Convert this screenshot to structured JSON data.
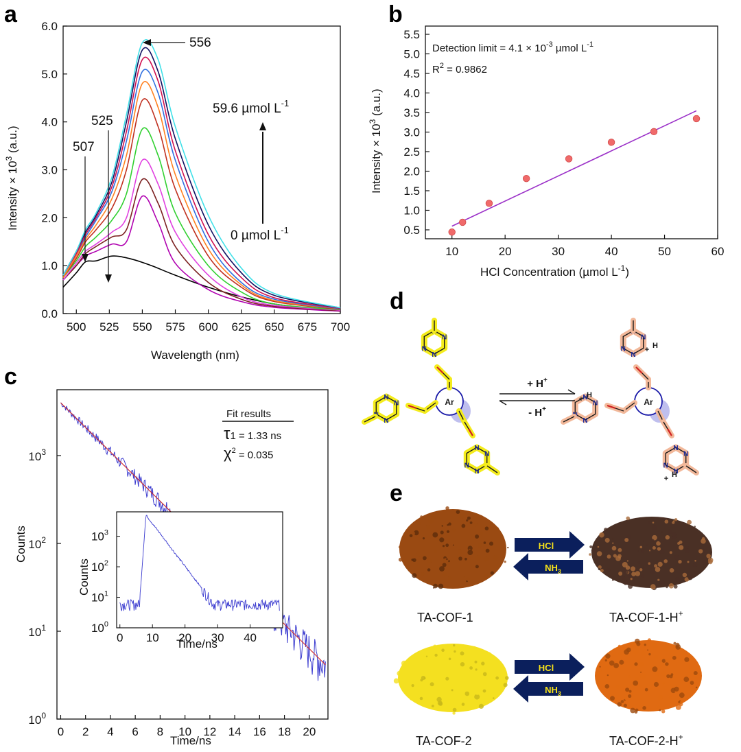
{
  "panels": {
    "a": "a",
    "b": "b",
    "c": "c",
    "d": "d",
    "e": "e"
  },
  "chart_data": [
    {
      "id": "a",
      "type": "line",
      "xlabel": "Wavelength (nm)",
      "ylabel_main": "Intensity × 10",
      "ylabel_sup": "3",
      "ylabel_tail": " (a.u.)",
      "xlim": [
        490,
        700
      ],
      "ylim": [
        0,
        6
      ],
      "xticks": [
        500,
        525,
        550,
        575,
        600,
        625,
        650,
        675,
        700
      ],
      "yticks": [
        "0.0",
        "1.0",
        "2.0",
        "3.0",
        "4.0",
        "5.0",
        "6.0"
      ],
      "annotations": {
        "peak_556": "556",
        "peak_525": "525",
        "peak_507": "507",
        "top_conc": "59.6 µmol L",
        "top_sup": "-1",
        "bottom_conc": "0 µmol L",
        "bottom_sup": "-1"
      },
      "series": [
        {
          "color": "#000000",
          "values": [
            [
              490,
              0.55
            ],
            [
              500,
              0.85
            ],
            [
              507,
              1.08
            ],
            [
              515,
              1.1
            ],
            [
              527,
              1.2
            ],
            [
              540,
              1.15
            ],
            [
              555,
              1.02
            ],
            [
              575,
              0.8
            ],
            [
              600,
              0.55
            ],
            [
              625,
              0.35
            ],
            [
              650,
              0.2
            ],
            [
              675,
              0.12
            ],
            [
              700,
              0.07
            ]
          ]
        },
        {
          "color": "#b000b0",
          "values": [
            [
              490,
              0.7
            ],
            [
              500,
              1.0
            ],
            [
              507,
              1.2
            ],
            [
              515,
              1.3
            ],
            [
              527,
              1.45
            ],
            [
              538,
              1.5
            ],
            [
              550,
              2.45
            ],
            [
              562,
              1.9
            ],
            [
              575,
              1.05
            ],
            [
              600,
              0.5
            ],
            [
              625,
              0.25
            ],
            [
              650,
              0.13
            ],
            [
              700,
              0.05
            ]
          ]
        },
        {
          "color": "#7b2020",
          "values": [
            [
              490,
              0.7
            ],
            [
              500,
              1.0
            ],
            [
              507,
              1.25
            ],
            [
              515,
              1.4
            ],
            [
              527,
              1.6
            ],
            [
              538,
              1.75
            ],
            [
              550,
              2.8
            ],
            [
              562,
              2.3
            ],
            [
              575,
              1.4
            ],
            [
              600,
              0.65
            ],
            [
              625,
              0.3
            ],
            [
              650,
              0.15
            ],
            [
              700,
              0.06
            ]
          ]
        },
        {
          "color": "#e040e0",
          "values": [
            [
              490,
              0.7
            ],
            [
              500,
              1.05
            ],
            [
              507,
              1.3
            ],
            [
              515,
              1.45
            ],
            [
              527,
              1.7
            ],
            [
              538,
              2.0
            ],
            [
              550,
              3.2
            ],
            [
              562,
              2.7
            ],
            [
              575,
              1.7
            ],
            [
              600,
              0.8
            ],
            [
              625,
              0.35
            ],
            [
              650,
              0.17
            ],
            [
              700,
              0.07
            ]
          ]
        },
        {
          "color": "#30d030",
          "values": [
            [
              490,
              0.75
            ],
            [
              500,
              1.1
            ],
            [
              507,
              1.4
            ],
            [
              515,
              1.6
            ],
            [
              527,
              1.95
            ],
            [
              538,
              2.5
            ],
            [
              550,
              3.85
            ],
            [
              562,
              3.3
            ],
            [
              575,
              2.1
            ],
            [
              600,
              1.0
            ],
            [
              625,
              0.45
            ],
            [
              650,
              0.2
            ],
            [
              700,
              0.08
            ]
          ]
        },
        {
          "color": "#c03020",
          "values": [
            [
              490,
              0.75
            ],
            [
              500,
              1.15
            ],
            [
              507,
              1.5
            ],
            [
              515,
              1.75
            ],
            [
              527,
              2.2
            ],
            [
              538,
              3.0
            ],
            [
              550,
              4.45
            ],
            [
              562,
              3.9
            ],
            [
              575,
              2.6
            ],
            [
              600,
              1.2
            ],
            [
              625,
              0.55
            ],
            [
              650,
              0.25
            ],
            [
              700,
              0.09
            ]
          ]
        },
        {
          "color": "#ff8020",
          "values": [
            [
              490,
              0.75
            ],
            [
              500,
              1.2
            ],
            [
              507,
              1.55
            ],
            [
              515,
              1.85
            ],
            [
              527,
              2.4
            ],
            [
              538,
              3.3
            ],
            [
              550,
              4.8
            ],
            [
              562,
              4.3
            ],
            [
              575,
              2.9
            ],
            [
              600,
              1.35
            ],
            [
              625,
              0.6
            ],
            [
              650,
              0.27
            ],
            [
              700,
              0.1
            ]
          ]
        },
        {
          "color": "#3070e0",
          "values": [
            [
              490,
              0.8
            ],
            [
              500,
              1.25
            ],
            [
              507,
              1.6
            ],
            [
              515,
              1.95
            ],
            [
              527,
              2.55
            ],
            [
              538,
              3.6
            ],
            [
              550,
              5.05
            ],
            [
              562,
              4.6
            ],
            [
              575,
              3.2
            ],
            [
              600,
              1.5
            ],
            [
              625,
              0.65
            ],
            [
              650,
              0.3
            ],
            [
              700,
              0.1
            ]
          ]
        },
        {
          "color": "#d01050",
          "values": [
            [
              490,
              0.8
            ],
            [
              500,
              1.25
            ],
            [
              507,
              1.65
            ],
            [
              515,
              2.0
            ],
            [
              527,
              2.65
            ],
            [
              538,
              3.8
            ],
            [
              550,
              5.3
            ],
            [
              562,
              4.85
            ],
            [
              575,
              3.4
            ],
            [
              600,
              1.65
            ],
            [
              625,
              0.75
            ],
            [
              650,
              0.33
            ],
            [
              700,
              0.11
            ]
          ]
        },
        {
          "color": "#101060",
          "values": [
            [
              490,
              0.8
            ],
            [
              500,
              1.3
            ],
            [
              507,
              1.7
            ],
            [
              515,
              2.05
            ],
            [
              527,
              2.75
            ],
            [
              538,
              4.0
            ],
            [
              550,
              5.5
            ],
            [
              562,
              5.05
            ],
            [
              575,
              3.65
            ],
            [
              600,
              1.85
            ],
            [
              625,
              0.85
            ],
            [
              650,
              0.38
            ],
            [
              700,
              0.12
            ]
          ]
        },
        {
          "color": "#40e0e8",
          "values": [
            [
              490,
              0.8
            ],
            [
              500,
              1.3
            ],
            [
              507,
              1.75
            ],
            [
              515,
              2.1
            ],
            [
              527,
              2.85
            ],
            [
              538,
              4.15
            ],
            [
              550,
              5.65
            ],
            [
              562,
              5.3
            ],
            [
              575,
              3.9
            ],
            [
              600,
              2.05
            ],
            [
              625,
              0.95
            ],
            [
              650,
              0.42
            ],
            [
              700,
              0.12
            ]
          ]
        }
      ]
    },
    {
      "id": "b",
      "type": "scatter",
      "xlabel_main": "HCl Concentration (µmol L",
      "xlabel_sup": "-1",
      "xlabel_tail": ")",
      "ylabel_main": "Intensity × 10",
      "ylabel_sup": "3",
      "ylabel_tail": " (a.u.)",
      "xlim": [
        5,
        60
      ],
      "ylim": [
        0.3,
        5.7
      ],
      "xticks": [
        10,
        20,
        30,
        40,
        50,
        60
      ],
      "yticks": [
        "0.5",
        "1.0",
        "1.5",
        "2.0",
        "2.5",
        "3.0",
        "3.5",
        "4.0",
        "4.5",
        "5.0",
        "5.5"
      ],
      "det_main": "Detection limit = 4.1 × 10",
      "det_sup": "-3",
      "det_tail": " µmol L",
      "det_sup2": "-1",
      "r2_main": "R",
      "r2_sup": "2",
      "r2_tail": " = 0.9862",
      "points": [
        [
          10,
          0.47
        ],
        [
          12,
          0.72
        ],
        [
          17,
          1.2
        ],
        [
          24,
          1.83
        ],
        [
          32,
          2.33
        ],
        [
          40,
          2.75
        ],
        [
          48,
          3.02
        ],
        [
          56,
          3.35
        ]
      ],
      "fit": [
        [
          10,
          0.62
        ],
        [
          56,
          3.55
        ]
      ]
    },
    {
      "id": "c",
      "type": "line",
      "xlabel": "Time/ns",
      "ylabel": "Counts",
      "xlim": [
        -0.3,
        21.5
      ],
      "ylog_range": [
        0,
        3.75
      ],
      "xticks": [
        0,
        2,
        4,
        6,
        8,
        10,
        12,
        14,
        16,
        18,
        20
      ],
      "ytick_base": "10",
      "ytick_exps": [
        "0",
        "1",
        "2",
        "3"
      ],
      "fit_title": "Fit results",
      "tau_symbol": "τ",
      "tau_text": "1 = 1.33 ns",
      "chi_symbol": "χ",
      "chi_sup": "2",
      "chi_text": " = 0.035",
      "decay": {
        "start": 4000,
        "tau": 3.1,
        "end_x": 21.3
      },
      "inset": {
        "xlabel": "Time/ns",
        "ylabel": "Counts",
        "xticks": [
          0,
          10,
          20,
          30,
          40
        ],
        "ytick_exps": [
          "0",
          "1",
          "2",
          "3"
        ],
        "xlim": [
          -1,
          50
        ],
        "ylog_range": [
          0,
          3.8
        ],
        "baseline": 6,
        "rise_x": [
          6,
          8
        ],
        "peak": 5000,
        "tau": 3.1
      }
    }
  ],
  "scheme_d": {
    "forward": "+ H",
    "forward_sup": "+",
    "backward": "- H",
    "backward_sup": "+",
    "center": "Ar",
    "atom_n": "N",
    "atom_h": "H",
    "charge": "+"
  },
  "photos_e": {
    "cof1": "TA-COF-1",
    "cof1h_main": "TA-COF-1-H",
    "cof1h_sup": "+",
    "cof2": "TA-COF-2",
    "cof2h_main": "TA-COF-2-H",
    "cof2h_sup": "+",
    "arrow_forward": "HCl",
    "arrow_back_main": "NH",
    "arrow_back_sub": "3",
    "colors": {
      "cof1": "#9a4a12",
      "cof1h": "#4a3025",
      "cof2": "#f4e020",
      "cof2h": "#e06a12",
      "arrow": "#0b1f5c",
      "arrow_text": "#f6e21a"
    }
  }
}
